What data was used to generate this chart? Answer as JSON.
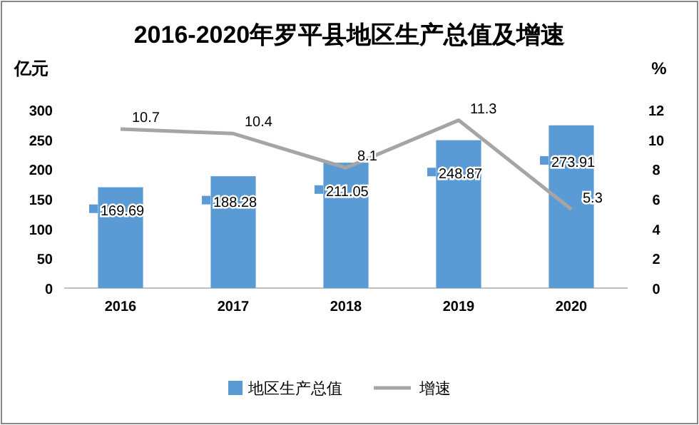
{
  "chart_data": {
    "type": "bar",
    "title": "2016-2020年罗平县地区生产总值及增速",
    "ylabel": "亿元",
    "y2label": "%",
    "categories": [
      "2016",
      "2017",
      "2018",
      "2019",
      "2020"
    ],
    "series": [
      {
        "name": "地区生产总值",
        "color": "#5b9bd5",
        "values": [
          169.69,
          188.28,
          211.05,
          248.87,
          273.91
        ]
      },
      {
        "name": "增速",
        "type": "line",
        "axis": "y2",
        "color": "#a5a5a5",
        "values": [
          10.7,
          10.4,
          8.1,
          11.3,
          5.3
        ]
      }
    ],
    "ylim": [
      0,
      300
    ],
    "yticks": [
      0,
      50,
      100,
      150,
      200,
      250,
      300
    ],
    "y2lim": [
      0,
      12
    ],
    "y2ticks": [
      0,
      2,
      4,
      6,
      8,
      10,
      12
    ],
    "data_labels": true,
    "legend": "bottom",
    "grid": false,
    "marker": "none"
  }
}
